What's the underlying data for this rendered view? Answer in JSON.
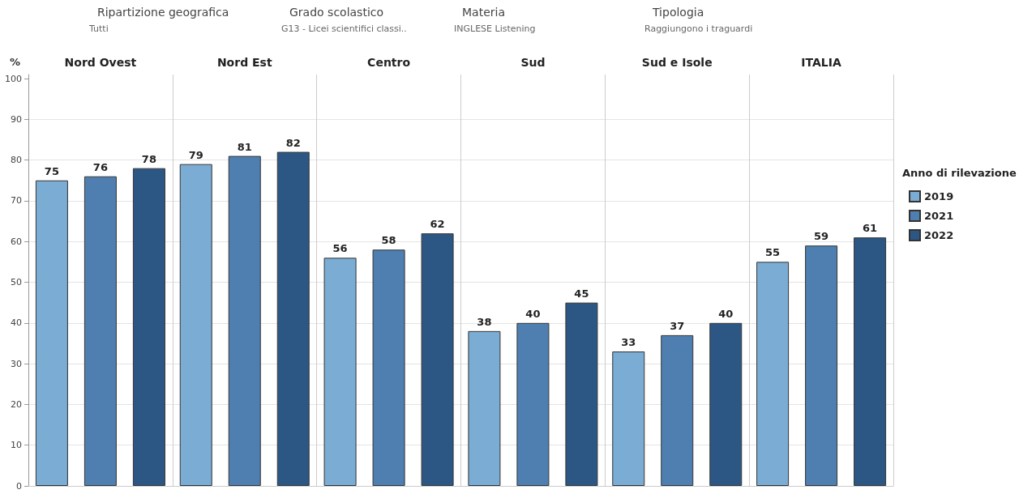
{
  "chart_data": {
    "type": "bar",
    "ylabel": "%",
    "legend_title": "Anno di rilevazione",
    "legend": "right",
    "annotations": [
      "Ripartizione geografica",
      "Tutti",
      "Grado scolastico",
      "G13 - Licei scientifici classi..",
      "Materia",
      "INGLESE Listening",
      "Tipologia",
      "Raggiungono i traguardi"
    ],
    "categories": [
      "Nord Ovest",
      "Nord Est",
      "Centro",
      "Sud",
      "Sud e Isole",
      "ITALIA"
    ],
    "series": [
      {
        "name": "2019",
        "color": "#7bacd4",
        "values": [
          75,
          79,
          56,
          38,
          33,
          55
        ]
      },
      {
        "name": "2021",
        "color": "#4e7fb0",
        "values": [
          76,
          81,
          58,
          40,
          37,
          59
        ]
      },
      {
        "name": "2022",
        "color": "#2c5784",
        "values": [
          78,
          82,
          62,
          45,
          40,
          61
        ]
      }
    ],
    "ylim": [
      0,
      101
    ],
    "yticks": [
      0,
      10,
      20,
      30,
      40,
      50,
      60,
      70,
      80,
      90,
      100
    ],
    "grid": true,
    "data_labels": true
  }
}
